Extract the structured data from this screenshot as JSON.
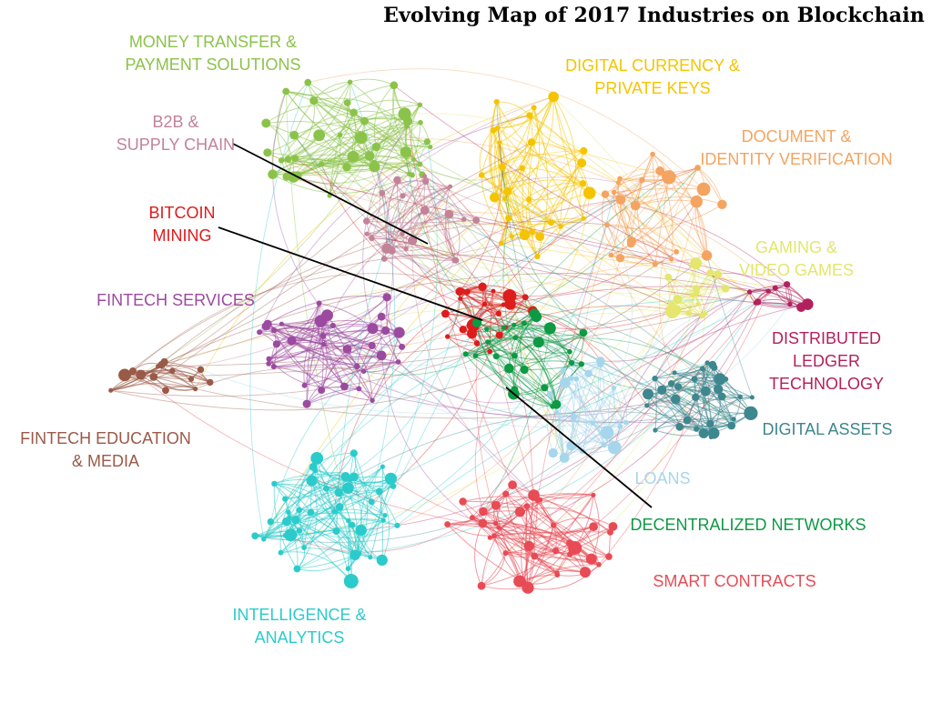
{
  "title": "Evolving Map of 2017 Industries on Blockchain",
  "colors": {
    "money": "#8bc34a",
    "digital": "#f5c400",
    "document": "#f4a460",
    "b2b": "#c28397",
    "bitcoin": "#dd1c1c",
    "gaming": "#e4e66d",
    "fintech": "#9c4aa0",
    "ledger": "#b3205e",
    "education": "#9a5a48",
    "assets": "#3e878e",
    "loans": "#a6d6ec",
    "decentral": "#0d9a43",
    "intel": "#2ccbcb",
    "smart": "#e84b55"
  },
  "clusters": [
    {
      "id": "money",
      "lines": [
        "MONEY TRANSFER &",
        "PAYMENT SOLUTIONS"
      ]
    },
    {
      "id": "digital",
      "lines": [
        "DIGITAL CURRENCY &",
        "PRIVATE KEYS"
      ]
    },
    {
      "id": "document",
      "lines": [
        "DOCUMENT &",
        "IDENTITY VERIFICATION"
      ]
    },
    {
      "id": "b2b",
      "lines": [
        "B2B &",
        "SUPPLY CHAIN"
      ]
    },
    {
      "id": "bitcoin",
      "lines": [
        "BITCOIN",
        "MINING"
      ]
    },
    {
      "id": "gaming",
      "lines": [
        "GAMING &",
        "VIDEO GAMES"
      ]
    },
    {
      "id": "fintech",
      "lines": [
        "FINTECH SERVICES"
      ]
    },
    {
      "id": "ledger",
      "lines": [
        "DISTRIBUTED",
        "LEDGER",
        "TECHNOLOGY"
      ]
    },
    {
      "id": "education",
      "lines": [
        "FINTECH EDUCATION",
        "& MEDIA"
      ]
    },
    {
      "id": "assets",
      "lines": [
        "DIGITAL ASSETS"
      ]
    },
    {
      "id": "loans",
      "lines": [
        "LOANS"
      ]
    },
    {
      "id": "decentral",
      "lines": [
        "DECENTRALIZED NETWORKS"
      ]
    },
    {
      "id": "intel",
      "lines": [
        "INTELLIGENCE &",
        "ANALYTICS"
      ]
    },
    {
      "id": "smart",
      "lines": [
        "SMART CONTRACTS"
      ]
    }
  ]
}
